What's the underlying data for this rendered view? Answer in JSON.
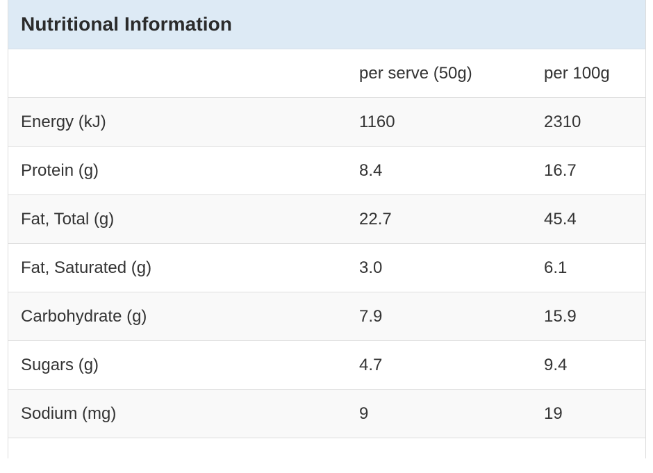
{
  "panel": {
    "title": "Nutritional Information"
  },
  "table": {
    "headers": [
      "",
      "per serve (50g)",
      "per 100g"
    ],
    "rows": [
      {
        "name": "Energy (kJ)",
        "per_serve": "1160",
        "per_100g": "2310"
      },
      {
        "name": "Protein (g)",
        "per_serve": "8.4",
        "per_100g": "16.7"
      },
      {
        "name": "Fat, Total (g)",
        "per_serve": "22.7",
        "per_100g": "45.4"
      },
      {
        "name": "Fat, Saturated (g)",
        "per_serve": "3.0",
        "per_100g": "6.1"
      },
      {
        "name": "Carbohydrate (g)",
        "per_serve": "7.9",
        "per_100g": "15.9"
      },
      {
        "name": "Sugars (g)",
        "per_serve": "4.7",
        "per_100g": "9.4"
      },
      {
        "name": "Sodium (mg)",
        "per_serve": "9",
        "per_100g": "19"
      }
    ]
  },
  "colors": {
    "heading_background": "#ddeaf5",
    "striped_row": "#f9f9f9",
    "border": "#dddddd",
    "text": "#333333"
  }
}
